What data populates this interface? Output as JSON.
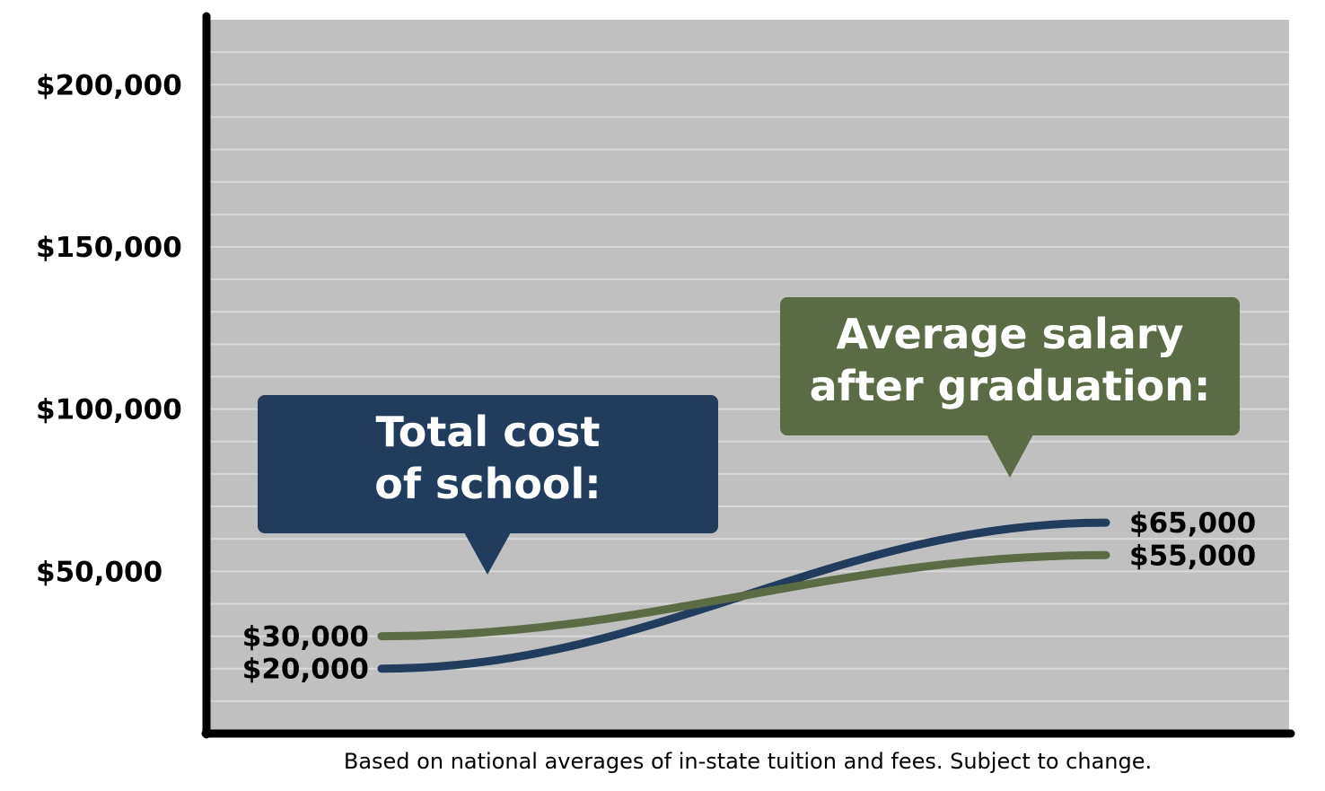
{
  "chart_data": {
    "type": "line",
    "title": "",
    "xlabel": "",
    "ylabel": "",
    "ylim": [
      0,
      220000
    ],
    "yticks": [
      50000,
      100000,
      150000,
      200000
    ],
    "ytick_labels": [
      "$50,000",
      "$100,000",
      "$150,000",
      "$200,000"
    ],
    "grid": true,
    "x": [
      "start",
      "end"
    ],
    "series": [
      {
        "key": "cost",
        "values": [
          20000,
          65000
        ],
        "start_label": "$20,000",
        "end_label": "$65,000",
        "color": "#223c5e"
      },
      {
        "key": "salary",
        "values": [
          30000,
          55000
        ],
        "start_label": "$30,000",
        "end_label": "$55,000",
        "color": "#5a6b45"
      }
    ],
    "annotations": [
      {
        "series": "cost",
        "lines": [
          "Total cost",
          "of school:"
        ],
        "color": "#223c5e"
      },
      {
        "series": "salary",
        "lines": [
          "Average salary",
          "after graduation:"
        ],
        "color": "#5a6b45"
      }
    ],
    "plot_background": "#c0c0c0",
    "gridline_color": "#d8d8d8"
  },
  "footnote": "Based on national averages of in-state tuition and fees. Subject to change."
}
